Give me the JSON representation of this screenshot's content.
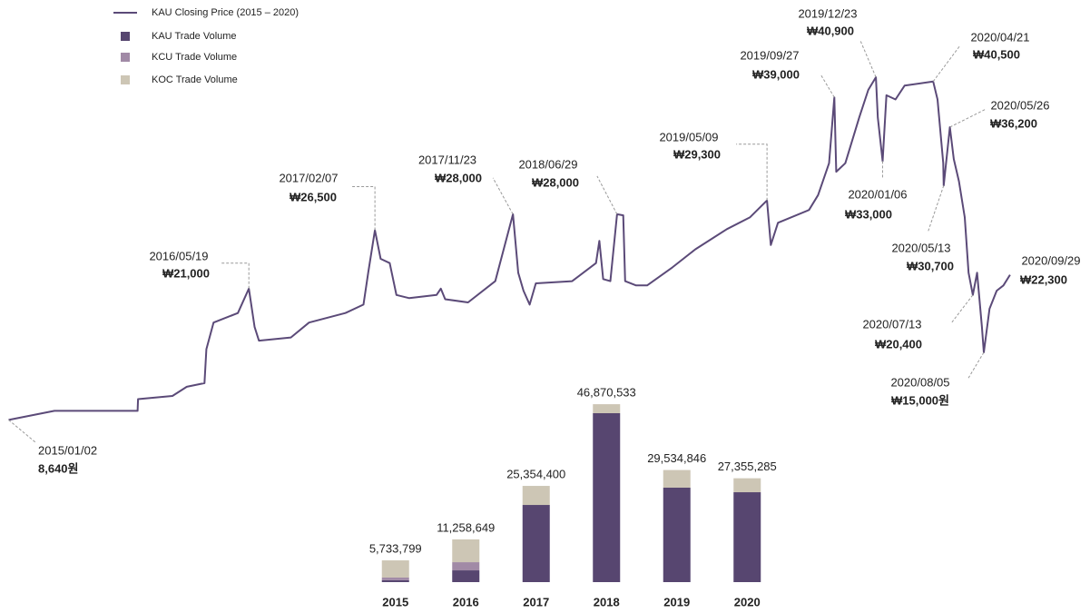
{
  "chart_data": [
    {
      "type": "line",
      "x": [
        "2015/01/02",
        "2015/04/08",
        "2015/09/29",
        "2015/09/30",
        "2015/12/11",
        "2016/01/10",
        "2016/02/16",
        "2016/02/20",
        "2016/03/06",
        "2016/04/26",
        "2016/05/19",
        "2016/05/31",
        "2016/06/09",
        "2016/08/15",
        "2016/09/22",
        "2016/12/07",
        "2017/01/14",
        "2017/01/24",
        "2017/02/07",
        "2017/02/19",
        "2017/03/10",
        "2017/03/24",
        "2017/04/20",
        "2017/06/16",
        "2017/06/25",
        "2017/07/04",
        "2017/08/21",
        "2017/10/17",
        "2017/11/23",
        "2017/12/04",
        "2017/12/15",
        "2017/12/28",
        "2018/01/10",
        "2018/03/27",
        "2018/05/16",
        "2018/05/23",
        "2018/05/31",
        "2018/06/15",
        "2018/06/29",
        "2018/07/12",
        "2018/07/16",
        "2018/08/08",
        "2018/08/31",
        "2018/10/23",
        "2018/12/10",
        "2019/02/14",
        "2019/04/03",
        "2019/05/09",
        "2019/05/17",
        "2019/06/01",
        "2019/08/05",
        "2019/08/24",
        "2019/09/16",
        "2019/09/27",
        "2019/10/01",
        "2019/10/20",
        "2019/11/18",
        "2019/12/07",
        "2019/12/23",
        "2019/12/27",
        "2020/01/06",
        "2020/01/14",
        "2020/02/02",
        "2020/02/21",
        "2020/04/21",
        "2020/04/30",
        "2020/05/12",
        "2020/05/13",
        "2020/05/26",
        "2020/06/03",
        "2020/06/14",
        "2020/06/26",
        "2020/07/04",
        "2020/07/13",
        "2020/07/22",
        "2020/08/01",
        "2020/08/05",
        "2020/08/17",
        "2020/09/01",
        "2020/09/15",
        "2020/09/29"
      ],
      "series": [
        {
          "name": "KAU Closing Price (2015 – 2020)",
          "color": "#5b4a78",
          "values": [
            8640,
            9500,
            9500,
            10600,
            10900,
            11760,
            12100,
            15300,
            17800,
            18700,
            21000,
            17400,
            16100,
            16400,
            17800,
            18700,
            19500,
            22500,
            26500,
            23800,
            23400,
            20400,
            20100,
            20400,
            21000,
            20000,
            19700,
            21700,
            28000,
            22500,
            20800,
            19500,
            21500,
            21700,
            23400,
            25500,
            21900,
            21700,
            28000,
            27900,
            21700,
            21300,
            21300,
            23000,
            24700,
            26600,
            27700,
            29300,
            25100,
            27200,
            28400,
            29800,
            32800,
            39000,
            32000,
            32800,
            37100,
            39700,
            40900,
            37100,
            33000,
            39200,
            38800,
            40100,
            40500,
            38800,
            32800,
            30700,
            36200,
            33200,
            31100,
            27700,
            22500,
            20400,
            22500,
            17400,
            15000,
            19100,
            20800,
            21300,
            22300
          ],
          "value_labels": [
            "8,640원",
            null,
            null,
            null,
            null,
            null,
            null,
            null,
            null,
            null,
            "₩21,000",
            null,
            null,
            null,
            null,
            null,
            null,
            null,
            "₩26,500",
            null,
            null,
            null,
            null,
            null,
            null,
            null,
            null,
            null,
            "₩28,000",
            null,
            null,
            null,
            null,
            null,
            null,
            null,
            null,
            null,
            "₩28,000",
            null,
            null,
            null,
            null,
            null,
            null,
            null,
            null,
            "₩29,300",
            null,
            null,
            null,
            null,
            null,
            "₩39,000",
            null,
            null,
            null,
            null,
            "₩40,900",
            null,
            "₩33,000",
            null,
            null,
            null,
            "₩40,500",
            null,
            null,
            "₩30,700",
            "₩36,200",
            null,
            null,
            null,
            null,
            "₩20,400",
            null,
            null,
            "₩15,000원",
            null,
            null,
            null,
            "₩22,300"
          ]
        }
      ],
      "xlim": [
        "2015/01/01",
        "2020/10/01"
      ],
      "ylim": [
        5000,
        45000
      ]
    },
    {
      "type": "bar",
      "stacked": true,
      "categories": [
        "2015",
        "2016",
        "2017",
        "2018",
        "2019",
        "2020"
      ],
      "series": [
        {
          "name": "KAU Trade Volume",
          "color": "#574670",
          "values": [
            500000,
            3100000,
            20330000,
            44500000,
            24880000,
            23680000
          ]
        },
        {
          "name": "KCU Trade Volume",
          "color": "#a18aa6",
          "values": [
            700000,
            2150000,
            0,
            0,
            0,
            0
          ]
        },
        {
          "name": "KOC Trade Volume",
          "color": "#cdc6b5",
          "values": [
            4530000,
            6010000,
            5020000,
            2370000,
            4650000,
            3680000
          ]
        }
      ],
      "totals": [
        5733799,
        11258649,
        25354400,
        46870533,
        29534846,
        27355285
      ],
      "total_labels": [
        "5,733,799",
        "11,258,649",
        "25,354,400",
        "46,870,533",
        "29,534,846",
        "27,355,285"
      ],
      "ylim": [
        0,
        50000000
      ]
    }
  ]
}
